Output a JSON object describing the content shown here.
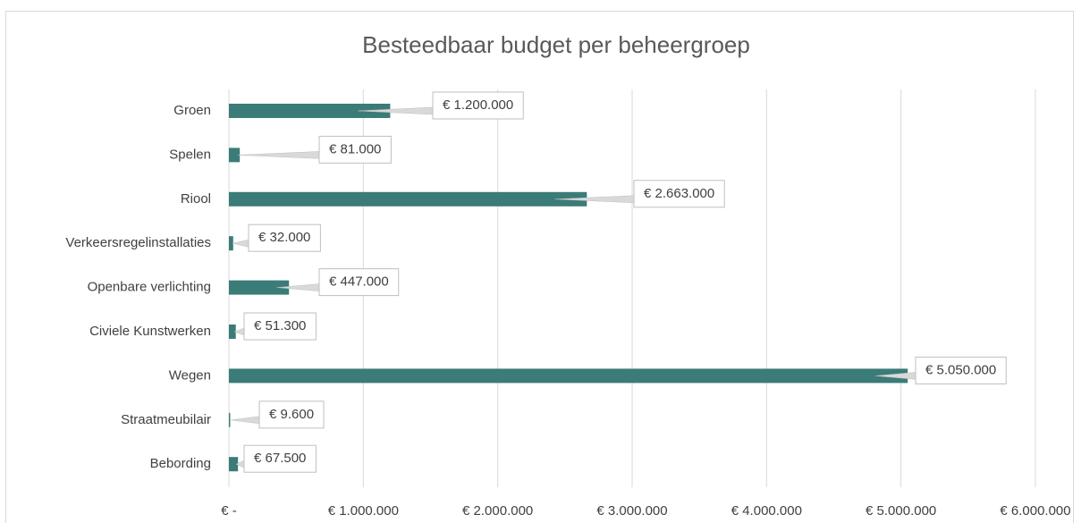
{
  "chart_data": {
    "type": "bar",
    "orientation": "horizontal",
    "title": "Besteedbaar budget per beheergroep",
    "categories": [
      "Groen",
      "Spelen",
      "Riool",
      "Verkeersregelinstallaties",
      "Openbare verlichting",
      "Civiele Kunstwerken",
      "Wegen",
      "Straatmeubilair",
      "Bebording"
    ],
    "values": [
      1200000,
      81000,
      2663000,
      32000,
      447000,
      51300,
      5050000,
      9600,
      67500
    ],
    "value_labels": [
      "€ 1.200.000",
      "€ 81.000",
      "€ 2.663.000",
      "€ 32.000",
      "€ 447.000",
      "€ 51.300",
      "€ 5.050.000",
      "€ 9.600",
      "€ 67.500"
    ],
    "color": "#3b7b78",
    "xlim": [
      0,
      6000000
    ],
    "xticks": [
      {
        "value": 0,
        "label": "€ -"
      },
      {
        "value": 1000000,
        "label": "€ 1.000.000"
      },
      {
        "value": 2000000,
        "label": "€ 2.000.000"
      },
      {
        "value": 3000000,
        "label": "€ 3.000.000"
      },
      {
        "value": 4000000,
        "label": "€ 4.000.000"
      },
      {
        "value": 5000000,
        "label": "€ 5.000.000"
      },
      {
        "value": 6000000,
        "label": "€ 6.000.000"
      }
    ],
    "grid": true
  }
}
